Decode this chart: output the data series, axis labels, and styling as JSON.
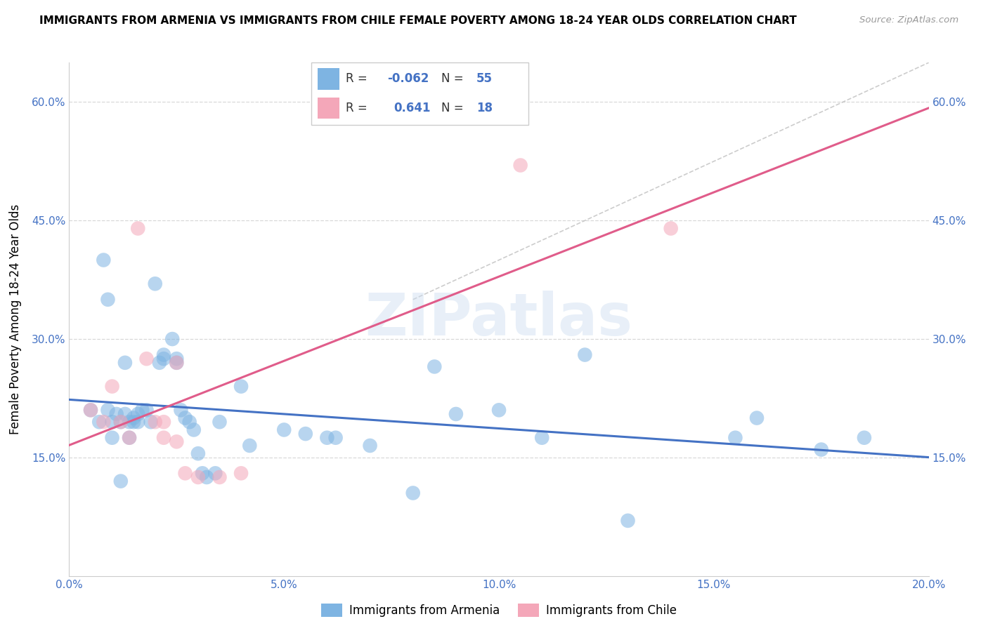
{
  "title": "IMMIGRANTS FROM ARMENIA VS IMMIGRANTS FROM CHILE FEMALE POVERTY AMONG 18-24 YEAR OLDS CORRELATION CHART",
  "source": "Source: ZipAtlas.com",
  "ylabel": "Female Poverty Among 18-24 Year Olds",
  "xlim": [
    0.0,
    0.2
  ],
  "ylim": [
    0.0,
    0.65
  ],
  "xtick_labels": [
    "0.0%",
    "5.0%",
    "10.0%",
    "15.0%",
    "20.0%"
  ],
  "xtick_vals": [
    0.0,
    0.05,
    0.1,
    0.15,
    0.2
  ],
  "ytick_labels": [
    "15.0%",
    "30.0%",
    "45.0%",
    "60.0%"
  ],
  "ytick_vals": [
    0.15,
    0.3,
    0.45,
    0.6
  ],
  "watermark": "ZIPatlas",
  "legend1_label": "Immigrants from Armenia",
  "legend2_label": "Immigrants from Chile",
  "R_armenia": -0.062,
  "N_armenia": 55,
  "R_chile": 0.641,
  "N_chile": 18,
  "color_armenia": "#7eb4e2",
  "color_chile": "#f4a7b9",
  "line_armenia": "#4472c4",
  "line_chile": "#e05c8a",
  "line_diag_color": "#c0c0c0",
  "armenia_x": [
    0.005,
    0.007,
    0.008,
    0.009,
    0.009,
    0.01,
    0.01,
    0.011,
    0.012,
    0.012,
    0.013,
    0.013,
    0.014,
    0.014,
    0.015,
    0.015,
    0.016,
    0.016,
    0.017,
    0.018,
    0.019,
    0.02,
    0.021,
    0.022,
    0.022,
    0.024,
    0.025,
    0.025,
    0.026,
    0.027,
    0.028,
    0.029,
    0.03,
    0.031,
    0.032,
    0.034,
    0.035,
    0.04,
    0.042,
    0.05,
    0.055,
    0.06,
    0.062,
    0.07,
    0.08,
    0.085,
    0.09,
    0.1,
    0.11,
    0.12,
    0.13,
    0.155,
    0.16,
    0.175,
    0.185
  ],
  "armenia_y": [
    0.21,
    0.195,
    0.4,
    0.35,
    0.21,
    0.195,
    0.175,
    0.205,
    0.195,
    0.12,
    0.27,
    0.205,
    0.195,
    0.175,
    0.195,
    0.2,
    0.205,
    0.195,
    0.21,
    0.21,
    0.195,
    0.37,
    0.27,
    0.28,
    0.275,
    0.3,
    0.275,
    0.27,
    0.21,
    0.2,
    0.195,
    0.185,
    0.155,
    0.13,
    0.125,
    0.13,
    0.195,
    0.24,
    0.165,
    0.185,
    0.18,
    0.175,
    0.175,
    0.165,
    0.105,
    0.265,
    0.205,
    0.21,
    0.175,
    0.28,
    0.07,
    0.175,
    0.2,
    0.16,
    0.175
  ],
  "chile_x": [
    0.005,
    0.008,
    0.01,
    0.012,
    0.014,
    0.016,
    0.018,
    0.02,
    0.022,
    0.022,
    0.025,
    0.025,
    0.027,
    0.03,
    0.035,
    0.04,
    0.105,
    0.14
  ],
  "chile_y": [
    0.21,
    0.195,
    0.24,
    0.195,
    0.175,
    0.44,
    0.275,
    0.195,
    0.175,
    0.195,
    0.17,
    0.27,
    0.13,
    0.125,
    0.125,
    0.13,
    0.52,
    0.44
  ]
}
